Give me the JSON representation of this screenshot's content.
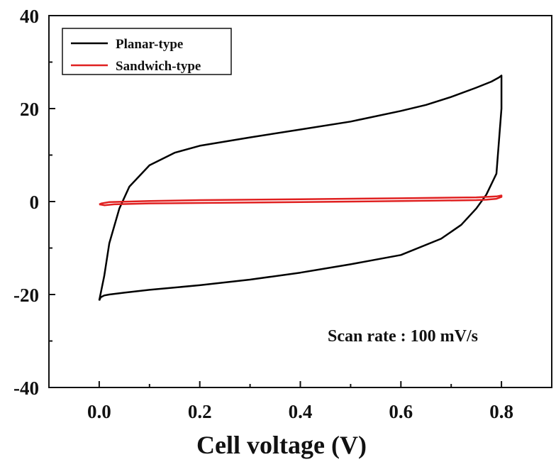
{
  "chart_data": {
    "type": "line",
    "title": "",
    "xlabel": "Cell voltage (V)",
    "ylabel": "",
    "xlim": [
      -0.1,
      0.9
    ],
    "ylim": [
      -40,
      40
    ],
    "xticks": [
      0.0,
      0.2,
      0.4,
      0.6,
      0.8
    ],
    "xtick_labels": [
      "0.0",
      "0.2",
      "0.4",
      "0.6",
      "0.8"
    ],
    "yticks": [
      -40,
      -20,
      0,
      20,
      40
    ],
    "ytick_labels": [
      "-40",
      "-20",
      "0",
      "20",
      "40"
    ],
    "grid": false,
    "legend_position": "top-left",
    "annotation": "Scan rate : 100 mV/s",
    "series": [
      {
        "name": "Planar-type",
        "color": "#000000",
        "x": [
          0.0,
          0.01,
          0.02,
          0.04,
          0.06,
          0.1,
          0.15,
          0.2,
          0.3,
          0.4,
          0.5,
          0.6,
          0.65,
          0.7,
          0.75,
          0.78,
          0.795,
          0.8,
          0.8,
          0.79,
          0.77,
          0.75,
          0.72,
          0.68,
          0.6,
          0.5,
          0.4,
          0.3,
          0.2,
          0.1,
          0.05,
          0.02,
          0.01,
          0.003,
          0.0
        ],
        "y": [
          -21.3,
          -16.0,
          -9.0,
          -1.5,
          3.2,
          7.8,
          10.5,
          12.0,
          13.8,
          15.5,
          17.2,
          19.5,
          20.8,
          22.5,
          24.5,
          25.8,
          26.7,
          27.1,
          20.0,
          6.0,
          1.5,
          -1.5,
          -5.0,
          -8.0,
          -11.5,
          -13.5,
          -15.3,
          -16.8,
          -18.0,
          -19.0,
          -19.6,
          -20.0,
          -20.2,
          -20.6,
          -21.3
        ]
      },
      {
        "name": "Sandwich-type",
        "color": "#e02020",
        "x": [
          0.0,
          0.005,
          0.02,
          0.1,
          0.2,
          0.4,
          0.6,
          0.75,
          0.79,
          0.8,
          0.8,
          0.79,
          0.77,
          0.75,
          0.6,
          0.4,
          0.2,
          0.1,
          0.03,
          0.01,
          0.0
        ],
        "y": [
          -0.6,
          -0.4,
          -0.1,
          0.1,
          0.3,
          0.5,
          0.7,
          0.9,
          1.1,
          1.3,
          1.0,
          0.6,
          0.4,
          0.3,
          0.1,
          -0.1,
          -0.3,
          -0.4,
          -0.6,
          -0.8,
          -0.6
        ]
      }
    ]
  }
}
